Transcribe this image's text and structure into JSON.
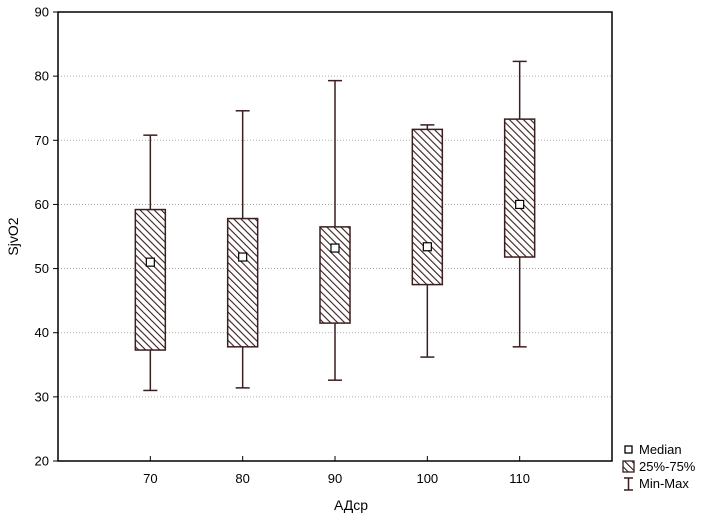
{
  "chart_data": {
    "type": "boxplot",
    "xlabel": "АДср",
    "ylabel": "SjvO2",
    "ylim": [
      20,
      90
    ],
    "yticks": [
      20,
      30,
      40,
      50,
      60,
      70,
      80,
      90
    ],
    "xlim": [
      60,
      120
    ],
    "grid": true,
    "legend_position": "bottom-right",
    "legend": {
      "median": "Median",
      "box": "25%-75%",
      "whisker": "Min-Max"
    },
    "categories": [
      "70",
      "80",
      "90",
      "100",
      "110"
    ],
    "boxes": [
      {
        "x": 70,
        "min": 31,
        "q1": 37.3,
        "median": 51,
        "q3": 59.2,
        "max": 70.8
      },
      {
        "x": 80,
        "min": 31.4,
        "q1": 37.8,
        "median": 51.8,
        "q3": 57.8,
        "max": 74.6
      },
      {
        "x": 90,
        "min": 32.6,
        "q1": 41.5,
        "median": 53.2,
        "q3": 56.5,
        "max": 79.3
      },
      {
        "x": 100,
        "min": 36.2,
        "q1": 47.5,
        "median": 53.4,
        "q3": 71.7,
        "max": 72.4
      },
      {
        "x": 110,
        "min": 37.8,
        "q1": 51.8,
        "median": 60,
        "q3": 73.3,
        "max": 82.3
      }
    ],
    "colors": {
      "box_stroke": "#3a1f1f",
      "hatch": "#3a1f1f",
      "whisker": "#3a1f1f",
      "grid": "#9a9a9a"
    }
  }
}
